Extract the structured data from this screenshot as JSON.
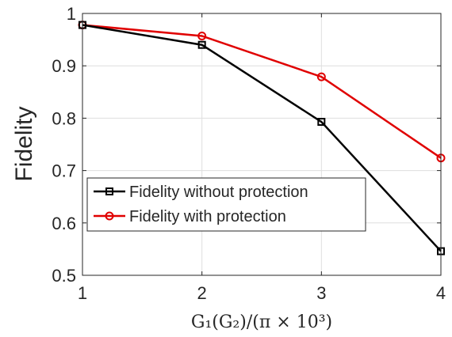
{
  "chart_data": {
    "type": "line",
    "xlabel": "G₁(G₂)/(π × 10³)",
    "ylabel": "Fidelity",
    "x": [
      1,
      2,
      3,
      4
    ],
    "xlim": [
      1,
      4
    ],
    "ylim": [
      0.5,
      1
    ],
    "x_ticks": [
      "1",
      "2",
      "3",
      "4"
    ],
    "y_ticks": [
      "0.5",
      "0.6",
      "0.7",
      "0.8",
      "0.9",
      "1"
    ],
    "grid": true,
    "legend_position": "lower-left",
    "series": [
      {
        "name": "Fidelity without protection",
        "values": [
          0.978,
          0.94,
          0.793,
          0.546
        ],
        "color": "#000000",
        "marker": "square"
      },
      {
        "name": "Fidelity with protection",
        "values": [
          0.978,
          0.957,
          0.879,
          0.724
        ],
        "color": "#e00000",
        "marker": "circle"
      }
    ]
  }
}
